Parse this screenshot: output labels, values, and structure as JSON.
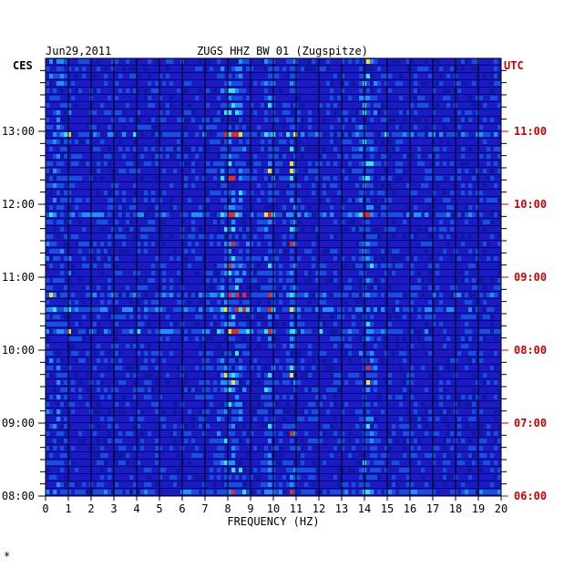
{
  "chart_data": {
    "type": "heatmap",
    "date_label": "Jun29,2011",
    "title": "ZUGS HHZ BW 01 (Zugspitze)",
    "left_timezone": "CES",
    "right_timezone": "UTC",
    "xlabel": "FREQUENCY (HZ)",
    "x_ticks": [
      "0",
      "1",
      "2",
      "3",
      "4",
      "5",
      "6",
      "7",
      "8",
      "9",
      "10",
      "11",
      "12",
      "13",
      "14",
      "15",
      "16",
      "17",
      "18",
      "19",
      "20"
    ],
    "xlim": [
      0,
      20
    ],
    "left_time_ticks": [
      "13:00",
      "12:00",
      "11:00",
      "10:00",
      "09:00",
      "08:00"
    ],
    "right_time_ticks": [
      "11:00",
      "10:00",
      "09:00",
      "08:00",
      "07:00",
      "06:00"
    ],
    "time_range_ces": [
      "08:00",
      "13:48"
    ],
    "minor_ticks_per_hour": 6,
    "colors": {
      "background": "#1a1ac8",
      "low": "#0d1aa6",
      "mid": "#1e90ff",
      "high_cyan": "#33e6e6",
      "high_yellow": "#f0e030",
      "peak": "#e03018",
      "utc_label": "#cc0000"
    },
    "energy_bands_hz": [
      {
        "center": 8.2,
        "width": 0.9
      },
      {
        "center": 9.8,
        "width": 0.3
      },
      {
        "center": 10.8,
        "width": 0.3
      },
      {
        "center": 14.1,
        "width": 0.5
      }
    ],
    "footer_mark": "*"
  }
}
